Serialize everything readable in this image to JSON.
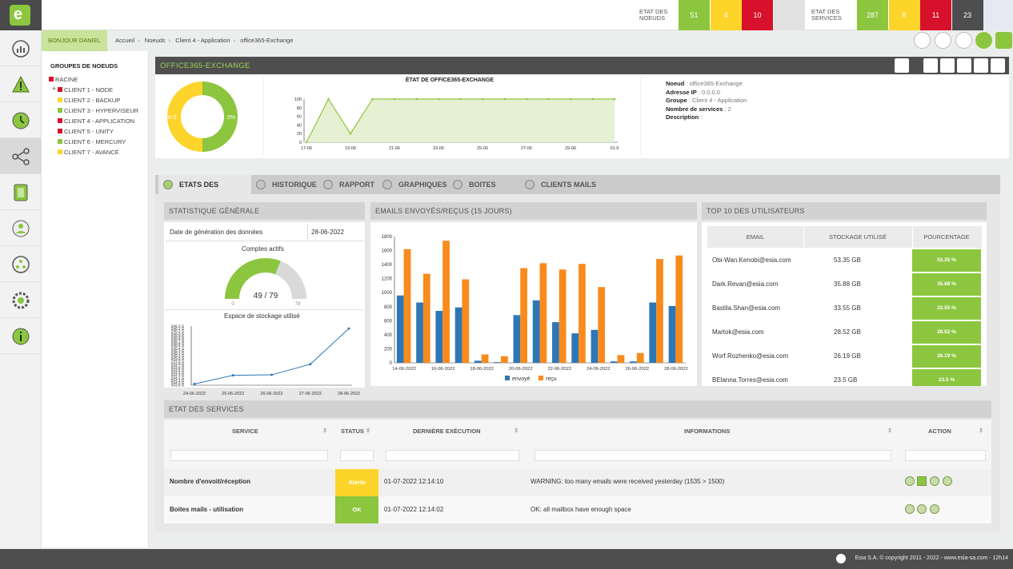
{
  "topbar": {
    "nodes_label_1": "ETAT DES",
    "nodes_label_2": "NOEUDS",
    "services_label_1": "ETAT DES",
    "services_label_2": "SERVICES",
    "nodes": [
      {
        "value": "51",
        "color": "#8cc63f"
      },
      {
        "value": "4",
        "color": "#fdd42a"
      },
      {
        "value": "10",
        "color": "#d7112b"
      },
      {
        "value": "",
        "color": "#e1e1e1"
      }
    ],
    "services": [
      {
        "value": "287",
        "color": "#8cc63f"
      },
      {
        "value": "8",
        "color": "#fdd42a"
      },
      {
        "value": "11",
        "color": "#d7112b"
      },
      {
        "value": "23",
        "color": "#4e4e4e"
      },
      {
        "value": "",
        "color": "#e6e8f2"
      }
    ]
  },
  "sidebar": {
    "items": [
      "dashboard-icon",
      "alert-icon",
      "history-icon",
      "nodes-icon",
      "services-icon",
      "users-icon",
      "network-icon",
      "settings-icon",
      "info-icon"
    ]
  },
  "greeting": "BONJOUR DANIEL",
  "breadcrumb": [
    "Accueil",
    "Noeuds",
    "Client 4 - Application",
    "office365-Exchange"
  ],
  "tree": {
    "title": "GROUPES DE NOEUDS",
    "items": [
      {
        "label": "RACINE",
        "color": "#d7112b"
      },
      {
        "label": "CLIENT 1 - NODE",
        "color": "#d7112b"
      },
      {
        "label": "CLIENT 2 - BACKUP",
        "color": "#fdd42a"
      },
      {
        "label": "CLIENT 3 - HYPERVISEUR",
        "color": "#8cc63f"
      },
      {
        "label": "CLIENT 4 - APPLICATION",
        "color": "#d7112b"
      },
      {
        "label": "CLIENT 5 - UNITY",
        "color": "#d7112b"
      },
      {
        "label": "CLIENT 6 - MERCURY",
        "color": "#8cc63f"
      },
      {
        "label": "CLIENT 7 - AVANCÉ",
        "color": "#fdd42a"
      }
    ]
  },
  "node": {
    "title": "OFFICE365-EXCHANGE",
    "donut_left": "50.0",
    "donut_right": "0%",
    "info": {
      "noeud_label": "Noeud",
      "noeud": "office365-Exchange",
      "ip_label": "Adresse IP",
      "ip": "0.0.0.0",
      "groupe_label": "Groupe",
      "groupe": "Client 4 - Application",
      "nb_label": "Nombre de services",
      "nb": "2",
      "desc_label": "Description",
      "desc": ""
    }
  },
  "tabs": [
    "ETATS DES SERVICES",
    "HISTORIQUE",
    "RAPPORT",
    "GRAPHIQUES",
    "BOITES MAILS",
    "CLIENTS MAILS"
  ],
  "stats": {
    "title": "STATISTIQUE GÉNÉRALE",
    "date_label": "Date de génération des données",
    "date_value": "28-06-2022",
    "comptes_title": "Comptes actifs",
    "comptes_value": "49 / 79",
    "gauge_min": "0",
    "gauge_max": "79",
    "storage_title": "Espace de stockage utilisé"
  },
  "emails_card": {
    "title": "EMAILS ENVOYÉS/REÇUS (15 JOURS)"
  },
  "top10": {
    "title": "TOP 10 DES UTILISATEURS",
    "headers": [
      "EMAIL",
      "STOCKAGE UTILISÉ",
      "POURCENTAGE"
    ],
    "rows": [
      {
        "email": "Obi-Wan.Kenobi@esia.com",
        "storage": "53.35 GB",
        "pct": "53.35 %"
      },
      {
        "email": "Dark.Revan@esia.com",
        "storage": "35.88 GB",
        "pct": "35.88 %"
      },
      {
        "email": "Bastila.Shan@esia.com",
        "storage": "33.55 GB",
        "pct": "33.55 %"
      },
      {
        "email": "Martok@esia.com",
        "storage": "28.52 GB",
        "pct": "28.52 %"
      },
      {
        "email": "Worf.Rozhenko@esia.com",
        "storage": "26.19 GB",
        "pct": "26.19 %"
      },
      {
        "email": "BElanna.Torres@esia.com",
        "storage": "23.5 GB",
        "pct": "23.5 %"
      }
    ]
  },
  "services": {
    "title": "ETAT DES SERVICES",
    "headers": [
      "SERVICE",
      "STATUS",
      "DERNIÈRE EXÉCUTION",
      "INFORMATIONS",
      "ACTION"
    ],
    "rows": [
      {
        "service": "Nombre d'envoit/réception",
        "status": "Alerte",
        "status_color": "#fdd42a",
        "date": "01-07-2022 12:14:10",
        "info": "WARNING: too many emails were received yesterday (1535 > 1500)"
      },
      {
        "service": "Boites mails - utilisation",
        "status": "OK",
        "status_color": "#8cc63f",
        "date": "01-07-2022 12:14:02",
        "info": "OK: all mailbox have enough space"
      }
    ]
  },
  "footer": "Esia S.A. © copyright 2011 - 2022 - www.esia-sa.com - 12h14",
  "chart_data": [
    {
      "type": "pie",
      "title": "",
      "categories": [
        "jaune",
        "vert"
      ],
      "values": [
        50,
        50
      ],
      "colors": [
        "#fdd42a",
        "#8cc63f"
      ]
    },
    {
      "type": "area",
      "title": "ÉTAT DE OFFICE365-EXCHANGE",
      "x": [
        "17-06",
        "18-06",
        "19-06",
        "20-06",
        "21-06",
        "22-06",
        "23-06",
        "24-06",
        "25-06",
        "26-06",
        "27-06",
        "28-06",
        "29-06",
        "30-06",
        "01-07"
      ],
      "values": [
        0,
        100,
        20,
        100,
        100,
        100,
        100,
        100,
        100,
        100,
        100,
        100,
        100,
        100,
        100
      ],
      "xticks": [
        "17-06",
        "19-06",
        "21-06",
        "23-06",
        "25-06",
        "27-06",
        "29-06",
        "01-0"
      ],
      "yticks": [
        "0",
        "20",
        "40",
        "60",
        "80",
        "100"
      ],
      "ylim": [
        0,
        100
      ],
      "grid": false
    },
    {
      "type": "bar",
      "title": "",
      "categories": [
        "14-06-2022",
        "15-06-2022",
        "16-06-2022",
        "17-06-2022",
        "18-06-2022",
        "19-06-2022",
        "20-06-2022",
        "21-06-2022",
        "22-06-2022",
        "23-06-2022",
        "24-06-2022",
        "25-06-2022",
        "26-06-2022",
        "27-06-2022",
        "28-06-2022"
      ],
      "xticks": [
        "14-06-2022",
        "16-06-2022",
        "18-06-2022",
        "20-06-2022",
        "22-06-2022",
        "24-06-2022",
        "26-06-2022",
        "28-06-2022"
      ],
      "series": [
        {
          "name": "envoyé",
          "color": "#2d77b6",
          "values": [
            960,
            860,
            740,
            790,
            30,
            10,
            680,
            890,
            580,
            420,
            470,
            20,
            20,
            860,
            810
          ]
        },
        {
          "name": "reçu",
          "color": "#f98a1c",
          "values": [
            1620,
            1270,
            1740,
            1190,
            120,
            95,
            1350,
            1420,
            1330,
            1410,
            1080,
            110,
            140,
            1480,
            1530
          ]
        }
      ],
      "ylim": [
        0,
        1800
      ],
      "yticks": [
        "0",
        "200",
        "400",
        "600",
        "800",
        "1000",
        "1200",
        "1400",
        "1600",
        "1800"
      ],
      "legend": "bottom"
    },
    {
      "type": "line",
      "title": "",
      "x": [
        "24-06-2022",
        "25-06-2022",
        "26-06-2022",
        "27-06-2022",
        "28-06-2022"
      ],
      "values": [
        543.95,
        544.3,
        544.32,
        544.75,
        546.2
      ],
      "ylim": [
        543.9,
        546.3
      ],
      "yticks": [
        "543.9 G",
        "544.0 G",
        "544.1 G",
        "544.2 G",
        "544.3 G",
        "544.4 G",
        "544.5 G",
        "544.6 G",
        "544.7 G",
        "544.8 G",
        "544.9 G",
        "545.0 G",
        "545.1 G",
        "545.2 G",
        "545.3 G",
        "545.4 G",
        "545.5 G",
        "545.6 G",
        "545.7 G",
        "545.8 G",
        "545.9 G",
        "546.0 G",
        "546.1 G",
        "546.2 G",
        "546.3 G"
      ],
      "color": "#2d77b6"
    },
    {
      "type": "pie",
      "title": "Comptes actifs",
      "values": [
        49,
        30
      ],
      "colors": [
        "#8cc63f",
        "#d9d9d9"
      ]
    }
  ]
}
